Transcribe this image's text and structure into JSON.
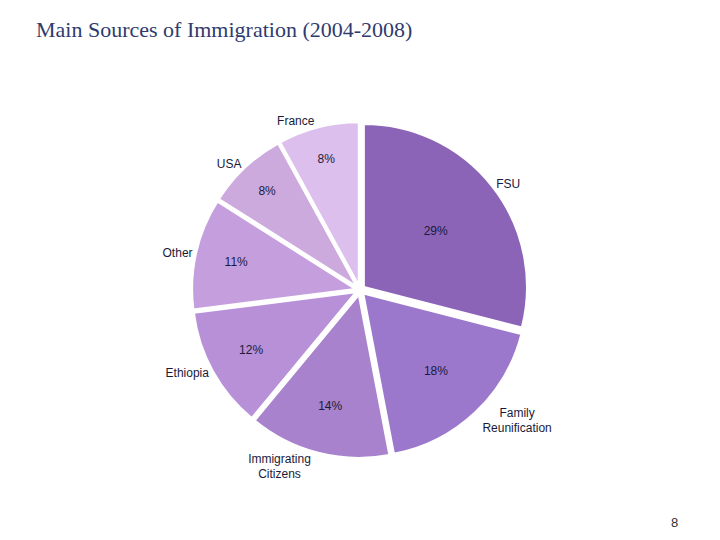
{
  "chart_data": {
    "type": "pie",
    "title": "Main Sources of Immigration (2004-2008)",
    "categories": [
      "FSU",
      "Family\nReunification",
      "Immigrating\nCitizens",
      "Ethiopia",
      "Other",
      "USA",
      "France"
    ],
    "values": [
      29,
      18,
      14,
      12,
      11,
      8,
      8
    ],
    "value_labels": [
      "29%",
      "18%",
      "14%",
      "12%",
      "11%",
      "8%",
      "8%"
    ],
    "colors": [
      "#8B64B8",
      "#9B78CC",
      "#A882CC",
      "#B890D8",
      "#C49EDD",
      "#CCAADD",
      "#DDBFEE"
    ],
    "data_labels": true,
    "annotations": [
      "8"
    ]
  }
}
